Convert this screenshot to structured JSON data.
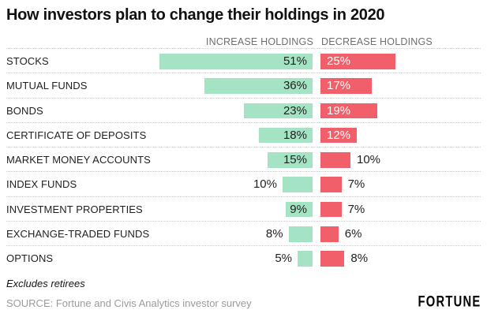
{
  "title": "How investors plan to change their holdings in 2020",
  "headers": {
    "increase": "INCREASE HOLDINGS",
    "decrease": "DECREASE HOLDINGS"
  },
  "footnote": "Excludes retirees",
  "source": "SOURCE: Fortune and Civis Analytics investor survey",
  "brand": "FORTUNE",
  "colors": {
    "increase_bar": "#a4e4c4",
    "decrease_bar": "#f15f6b",
    "value_dark": "#1f1f1f",
    "value_light": "#ffffff",
    "header_gray": "#6e6e6e",
    "separator": "#cfcfcf"
  },
  "chart_data": {
    "type": "bar",
    "orientation": "horizontal-diverging",
    "title": "How investors plan to change their holdings in 2020",
    "legend": [
      "INCREASE HOLDINGS",
      "DECREASE HOLDINGS"
    ],
    "legend_position": "top",
    "grid": "dotted row separators",
    "unit": "%",
    "xlim_each_side": [
      0,
      55
    ],
    "categories": [
      "STOCKS",
      "MUTUAL FUNDS",
      "BONDS",
      "CERTIFICATE OF DEPOSITS",
      "MARKET MONEY ACCOUNTS",
      "INDEX FUNDS",
      "INVESTMENT PROPERTIES",
      "EXCHANGE-TRADED FUNDS",
      "OPTIONS"
    ],
    "series": [
      {
        "name": "Increase holdings",
        "color": "#a4e4c4",
        "values": [
          51,
          36,
          23,
          18,
          15,
          10,
          9,
          8,
          5
        ]
      },
      {
        "name": "Decrease holdings",
        "color": "#f15f6b",
        "values": [
          25,
          17,
          19,
          12,
          10,
          7,
          7,
          6,
          8
        ]
      }
    ],
    "rows": [
      {
        "label": "STOCKS",
        "increase": {
          "value": 51,
          "display": "51%",
          "inside": true
        },
        "decrease": {
          "value": 25,
          "display": "25%",
          "inside": true
        }
      },
      {
        "label": "MUTUAL FUNDS",
        "increase": {
          "value": 36,
          "display": "36%",
          "inside": true
        },
        "decrease": {
          "value": 17,
          "display": "17%",
          "inside": true
        }
      },
      {
        "label": "BONDS",
        "increase": {
          "value": 23,
          "display": "23%",
          "inside": true
        },
        "decrease": {
          "value": 19,
          "display": "19%",
          "inside": true
        }
      },
      {
        "label": "CERTIFICATE OF DEPOSITS",
        "increase": {
          "value": 18,
          "display": "18%",
          "inside": true
        },
        "decrease": {
          "value": 12,
          "display": "12%",
          "inside": true
        }
      },
      {
        "label": "MARKET MONEY ACCOUNTS",
        "increase": {
          "value": 15,
          "display": "15%",
          "inside": true
        },
        "decrease": {
          "value": 10,
          "display": "10%",
          "inside": false
        }
      },
      {
        "label": "INDEX FUNDS",
        "increase": {
          "value": 10,
          "display": "10%",
          "inside": false
        },
        "decrease": {
          "value": 7,
          "display": "7%",
          "inside": false
        }
      },
      {
        "label": "INVESTMENT PROPERTIES",
        "increase": {
          "value": 9,
          "display": "9%",
          "inside": true
        },
        "decrease": {
          "value": 7,
          "display": "7%",
          "inside": false
        }
      },
      {
        "label": "EXCHANGE-TRADED FUNDS",
        "increase": {
          "value": 8,
          "display": "8%",
          "inside": false
        },
        "decrease": {
          "value": 6,
          "display": "6%",
          "inside": false
        }
      },
      {
        "label": "OPTIONS",
        "increase": {
          "value": 5,
          "display": "5%",
          "inside": false
        },
        "decrease": {
          "value": 8,
          "display": "8%",
          "inside": false
        }
      }
    ]
  }
}
